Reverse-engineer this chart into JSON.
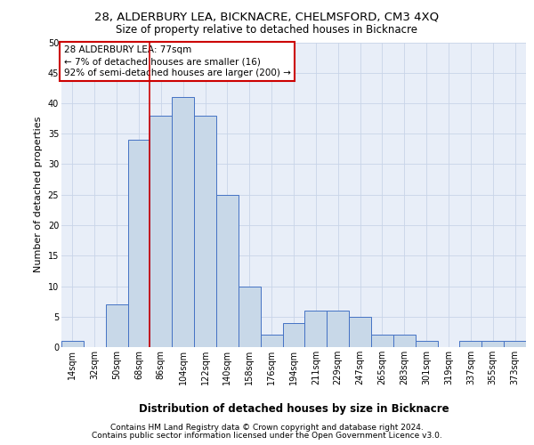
{
  "title1": "28, ALDERBURY LEA, BICKNACRE, CHELMSFORD, CM3 4XQ",
  "title2": "Size of property relative to detached houses in Bicknacre",
  "xlabel": "Distribution of detached houses by size in Bicknacre",
  "ylabel": "Number of detached properties",
  "categories": [
    "14sqm",
    "32sqm",
    "50sqm",
    "68sqm",
    "86sqm",
    "104sqm",
    "122sqm",
    "140sqm",
    "158sqm",
    "176sqm",
    "194sqm",
    "211sqm",
    "229sqm",
    "247sqm",
    "265sqm",
    "283sqm",
    "301sqm",
    "319sqm",
    "337sqm",
    "355sqm",
    "373sqm"
  ],
  "values": [
    1,
    0,
    7,
    34,
    38,
    41,
    38,
    25,
    10,
    2,
    4,
    6,
    6,
    5,
    2,
    2,
    1,
    0,
    1,
    1,
    1
  ],
  "bar_color": "#c8d8e8",
  "bar_edge_color": "#4472c4",
  "vline_x_index": 3.5,
  "vline_color": "#cc0000",
  "annotation_text": "28 ALDERBURY LEA: 77sqm\n← 7% of detached houses are smaller (16)\n92% of semi-detached houses are larger (200) →",
  "annotation_box_color": "#ffffff",
  "annotation_box_edge": "#cc0000",
  "ylim": [
    0,
    50
  ],
  "yticks": [
    0,
    5,
    10,
    15,
    20,
    25,
    30,
    35,
    40,
    45,
    50
  ],
  "grid_color": "#c8d4e8",
  "background_color": "#e8eef8",
  "footer1": "Contains HM Land Registry data © Crown copyright and database right 2024.",
  "footer2": "Contains public sector information licensed under the Open Government Licence v3.0.",
  "title1_fontsize": 9.5,
  "title2_fontsize": 8.5,
  "xlabel_fontsize": 8.5,
  "ylabel_fontsize": 8,
  "tick_fontsize": 7,
  "annotation_fontsize": 7.5,
  "footer_fontsize": 6.5
}
